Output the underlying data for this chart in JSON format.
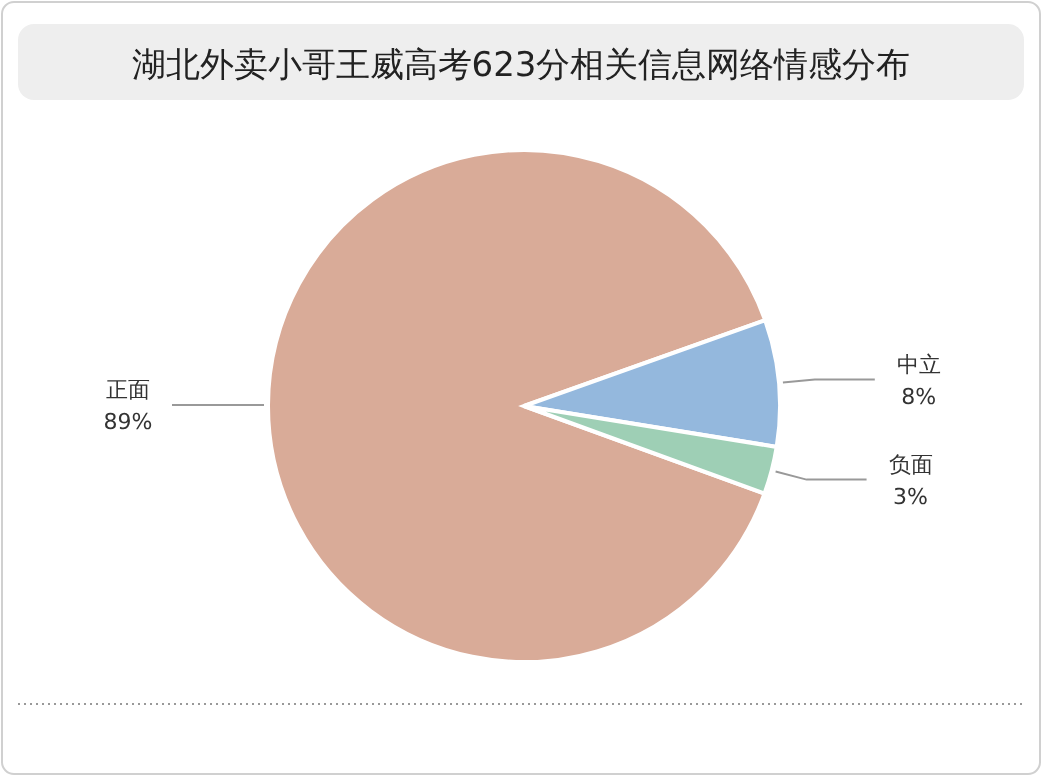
{
  "chart_data": {
    "type": "pie",
    "title": "湖北外卖小哥王威高考623分相关信息网络情感分布",
    "categories": [
      "正面",
      "中立",
      "负面"
    ],
    "values": [
      89,
      8,
      3
    ],
    "value_labels": [
      "89%",
      "8%",
      "3%"
    ],
    "colors": [
      "#d9ab98",
      "#94b8dd",
      "#9ecfb5"
    ]
  }
}
